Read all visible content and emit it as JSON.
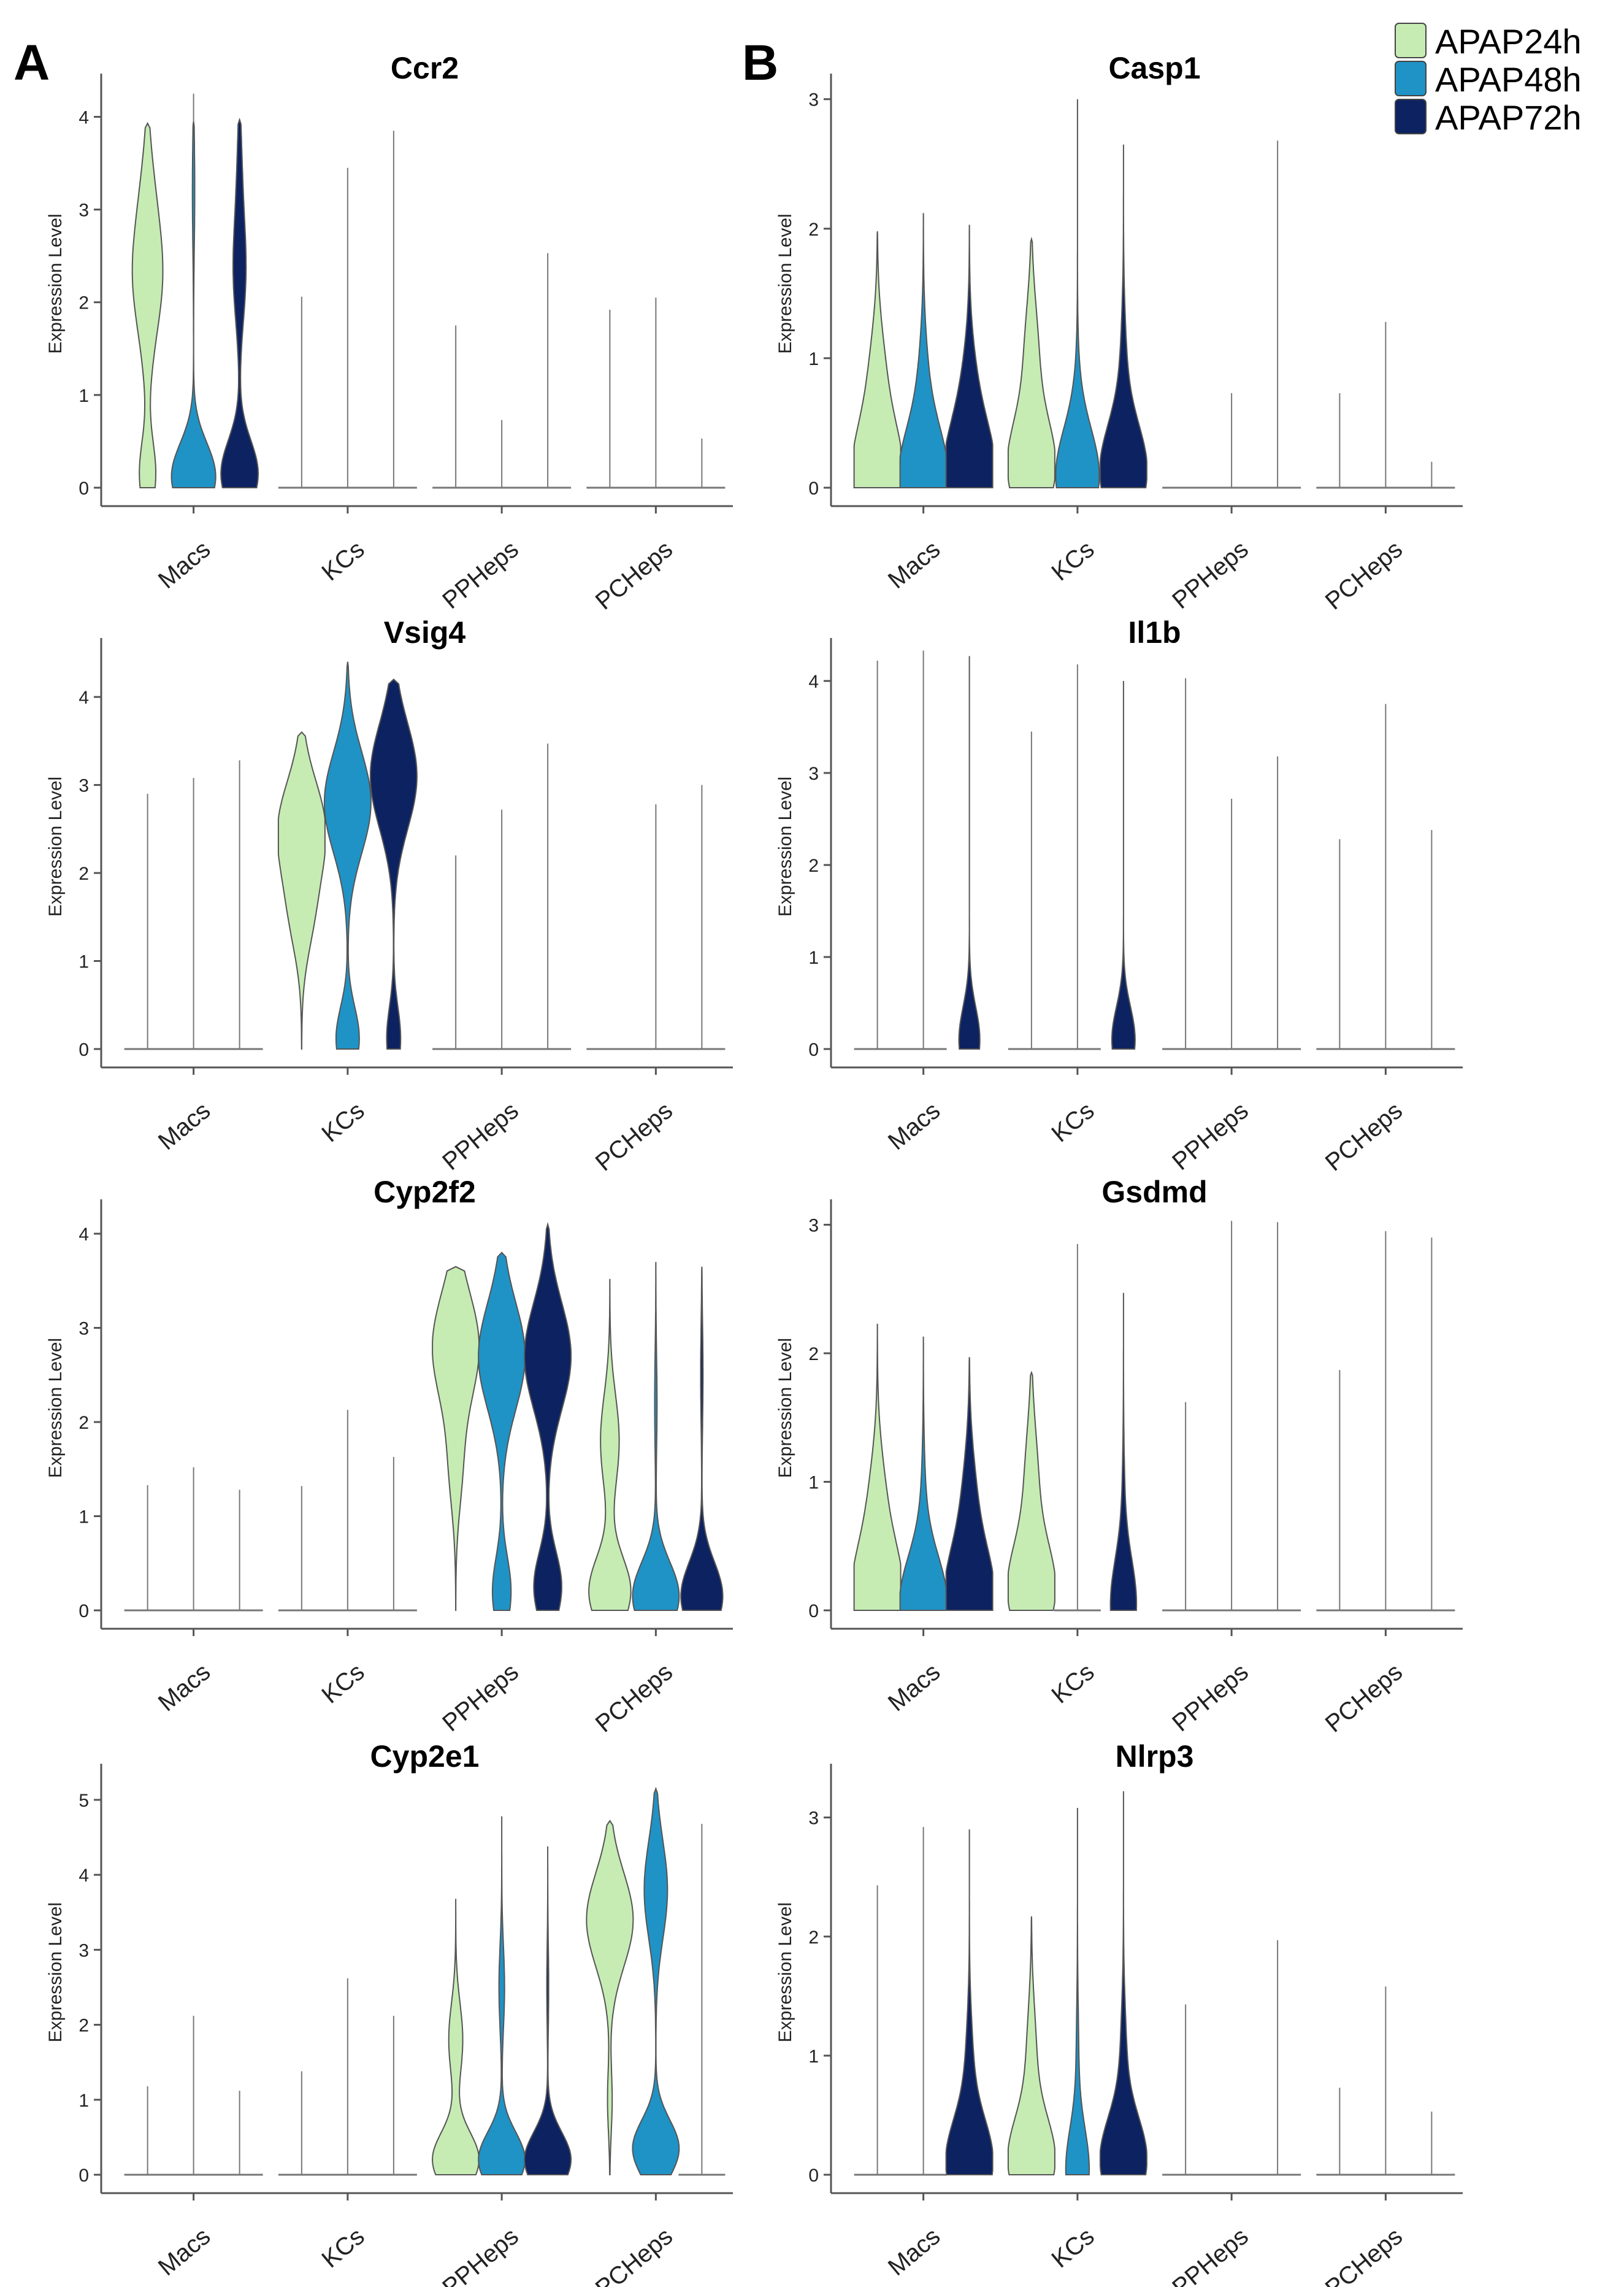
{
  "panel_labels": [
    "A",
    "B"
  ],
  "y_axis_label": "Expression Level",
  "legend": [
    {
      "label": "APAP24h",
      "color": "#c6ecb3"
    },
    {
      "label": "APAP48h",
      "color": "#1f93c6"
    },
    {
      "label": "APAP72h",
      "color": "#0d2260"
    }
  ],
  "categories": [
    "Macs",
    "KCs",
    "PPHeps",
    "PCHeps"
  ],
  "colors": {
    "outline": "#555555",
    "axis": "#555555",
    "text": "#000000"
  },
  "chart_data": [
    {
      "type": "violin",
      "title": "Ccr2",
      "ylim": [
        0,
        4.4
      ],
      "yticks": [
        0,
        1,
        2,
        3,
        4
      ],
      "violins": [
        {
          "shape": "full",
          "max": 3.93,
          "modes": [
            [
              0.15,
              0.35
            ],
            [
              1.4,
              0.1
            ],
            [
              2.2,
              0.5
            ],
            [
              3.0,
              0.3
            ]
          ],
          "base": 0.25
        },
        {
          "shape": "full",
          "max": 3.95,
          "modes": [
            [
              0.12,
              0.95
            ],
            [
              3.2,
              0.05
            ]
          ],
          "base": 0.1,
          "tail": 4.25
        },
        {
          "shape": "full",
          "max": 3.97,
          "modes": [
            [
              0.15,
              0.8
            ],
            [
              2.3,
              0.25
            ],
            [
              3.3,
              0.1
            ]
          ],
          "base": 0.15
        },
        {
          "shape": "line",
          "max": 2.06
        },
        {
          "shape": "line",
          "max": 3.45
        },
        {
          "shape": "line",
          "max": 3.85
        },
        {
          "shape": "line",
          "max": 1.75
        },
        {
          "shape": "line",
          "max": 0.73
        },
        {
          "shape": "line",
          "max": 2.53
        },
        {
          "shape": "line",
          "max": 1.92
        },
        {
          "shape": "line",
          "max": 2.05
        },
        {
          "shape": "line",
          "max": 0.53
        }
      ]
    },
    {
      "type": "violin",
      "title": "Casp1",
      "ylim": [
        0,
        3.15
      ],
      "yticks": [
        0,
        1,
        2,
        3
      ],
      "violins": [
        {
          "shape": "full",
          "max": 1.98,
          "modes": [
            [
              0.1,
              1.0
            ],
            [
              0.8,
              0.35
            ]
          ],
          "base": 0.05
        },
        {
          "shape": "full",
          "max": 2.12,
          "modes": [
            [
              0.08,
              1.0
            ],
            [
              0.75,
              0.2
            ]
          ],
          "base": 0.08
        },
        {
          "shape": "full",
          "max": 2.03,
          "modes": [
            [
              0.1,
              1.0
            ],
            [
              0.7,
              0.3
            ]
          ],
          "base": 0.08
        },
        {
          "shape": "full",
          "max": 1.92,
          "modes": [
            [
              0.15,
              1.0
            ],
            [
              1.0,
              0.3
            ]
          ],
          "base": 0.06
        },
        {
          "shape": "full",
          "max": 3.0,
          "modes": [
            [
              0.08,
              0.9
            ],
            [
              0.6,
              0.08
            ]
          ],
          "base": 0.05
        },
        {
          "shape": "full",
          "max": 2.65,
          "modes": [
            [
              0.12,
              1.0
            ],
            [
              0.9,
              0.12
            ]
          ],
          "base": 0.05
        },
        {
          "shape": "line",
          "max": 0.0
        },
        {
          "shape": "line",
          "max": 0.73
        },
        {
          "shape": "line",
          "max": 2.68
        },
        {
          "shape": "line",
          "max": 0.73
        },
        {
          "shape": "line",
          "max": 1.28
        },
        {
          "shape": "line",
          "max": 0.2
        }
      ]
    },
    {
      "type": "violin",
      "title": "Vsig4",
      "ylim": [
        0,
        4.6
      ],
      "yticks": [
        0,
        1,
        2,
        3,
        4
      ],
      "violins": [
        {
          "shape": "line",
          "max": 2.9
        },
        {
          "shape": "line",
          "max": 3.08
        },
        {
          "shape": "line",
          "max": 3.28
        },
        {
          "shape": "full",
          "max": 3.6,
          "modes": [
            [
              2.5,
              1.0
            ],
            [
              1.5,
              0.4
            ]
          ],
          "base": 0.0,
          "tail": 0.0
        },
        {
          "shape": "full",
          "max": 4.4,
          "modes": [
            [
              2.8,
              1.0
            ],
            [
              0.12,
              0.5
            ]
          ],
          "base": 0.25
        },
        {
          "shape": "full",
          "max": 4.2,
          "modes": [
            [
              3.1,
              1.0
            ],
            [
              0.12,
              0.3
            ]
          ],
          "base": 0.1
        },
        {
          "shape": "line",
          "max": 2.2
        },
        {
          "shape": "line",
          "max": 2.72
        },
        {
          "shape": "line",
          "max": 3.47
        },
        {
          "shape": "line",
          "max": 0.0
        },
        {
          "shape": "line",
          "max": 2.78
        },
        {
          "shape": "line",
          "max": 3.0
        }
      ]
    },
    {
      "type": "violin",
      "title": "Il1b",
      "ylim": [
        0,
        4.4
      ],
      "yticks": [
        0,
        1,
        2,
        3,
        4
      ],
      "violins": [
        {
          "shape": "line",
          "max": 4.22
        },
        {
          "shape": "line",
          "max": 4.33
        },
        {
          "shape": "full",
          "max": 4.27,
          "modes": [
            [
              0.1,
              0.45
            ]
          ],
          "base": 0.2
        },
        {
          "shape": "line",
          "max": 3.45
        },
        {
          "shape": "line",
          "max": 4.18
        },
        {
          "shape": "full",
          "max": 4.0,
          "modes": [
            [
              0.1,
              0.5
            ]
          ],
          "base": 0.2
        },
        {
          "shape": "line",
          "max": 4.03
        },
        {
          "shape": "line",
          "max": 2.72
        },
        {
          "shape": "line",
          "max": 3.18
        },
        {
          "shape": "line",
          "max": 2.28
        },
        {
          "shape": "line",
          "max": 3.75
        },
        {
          "shape": "line",
          "max": 2.38
        }
      ]
    },
    {
      "type": "violin",
      "title": "Cyp2f2",
      "ylim": [
        0,
        4.3
      ],
      "yticks": [
        0,
        1,
        2,
        3,
        4
      ],
      "violins": [
        {
          "shape": "line",
          "max": 1.33
        },
        {
          "shape": "line",
          "max": 1.52
        },
        {
          "shape": "line",
          "max": 1.28
        },
        {
          "shape": "line",
          "max": 1.32
        },
        {
          "shape": "line",
          "max": 2.13
        },
        {
          "shape": "line",
          "max": 1.63
        },
        {
          "shape": "full",
          "max": 3.65,
          "modes": [
            [
              2.8,
              1.0
            ],
            [
              1.5,
              0.25
            ]
          ],
          "base": 0.0
        },
        {
          "shape": "full",
          "max": 3.8,
          "modes": [
            [
              2.7,
              1.0
            ],
            [
              0.2,
              0.4
            ]
          ],
          "base": 0.25
        },
        {
          "shape": "full",
          "max": 4.1,
          "modes": [
            [
              2.7,
              1.0
            ],
            [
              0.25,
              0.6
            ]
          ],
          "base": 0.3
        },
        {
          "shape": "full",
          "max": 3.52,
          "modes": [
            [
              0.2,
              0.9
            ],
            [
              1.8,
              0.4
            ]
          ],
          "base": 0.35
        },
        {
          "shape": "full",
          "max": 3.7,
          "modes": [
            [
              0.15,
              1.0
            ],
            [
              2.2,
              0.05
            ]
          ],
          "base": 0.35
        },
        {
          "shape": "full",
          "max": 3.65,
          "modes": [
            [
              0.15,
              0.9
            ],
            [
              2.5,
              0.05
            ]
          ],
          "base": 0.3
        }
      ]
    },
    {
      "type": "violin",
      "title": "Gsdmd",
      "ylim": [
        0,
        3.15
      ],
      "yticks": [
        0,
        1,
        2,
        3
      ],
      "violins": [
        {
          "shape": "full",
          "max": 2.23,
          "modes": [
            [
              0.12,
              1.0
            ],
            [
              0.8,
              0.35
            ]
          ],
          "base": 0.06
        },
        {
          "shape": "full",
          "max": 2.13,
          "modes": [
            [
              0.06,
              1.0
            ],
            [
              0.8,
              0.08
            ]
          ],
          "base": 0.08
        },
        {
          "shape": "full",
          "max": 1.97,
          "modes": [
            [
              0.1,
              1.0
            ],
            [
              0.8,
              0.3
            ]
          ],
          "base": 0.05
        },
        {
          "shape": "full",
          "max": 1.85,
          "modes": [
            [
              0.15,
              1.0
            ],
            [
              1.0,
              0.28
            ]
          ],
          "base": 0.05
        },
        {
          "shape": "line",
          "max": 2.85
        },
        {
          "shape": "full",
          "max": 2.47,
          "modes": [
            [
              0.04,
              0.55
            ],
            [
              0.8,
              0.05
            ]
          ],
          "base": 0.1
        },
        {
          "shape": "line",
          "max": 1.62
        },
        {
          "shape": "line",
          "max": 3.03
        },
        {
          "shape": "line",
          "max": 3.02
        },
        {
          "shape": "line",
          "max": 1.87
        },
        {
          "shape": "line",
          "max": 2.95
        },
        {
          "shape": "line",
          "max": 2.9
        }
      ]
    },
    {
      "type": "violin",
      "title": "Cyp2e1",
      "ylim": [
        0,
        5.4
      ],
      "yticks": [
        0,
        1,
        2,
        3,
        4,
        5
      ],
      "violins": [
        {
          "shape": "line",
          "max": 1.18
        },
        {
          "shape": "line",
          "max": 2.12
        },
        {
          "shape": "line",
          "max": 1.12
        },
        {
          "shape": "line",
          "max": 1.38
        },
        {
          "shape": "line",
          "max": 2.62
        },
        {
          "shape": "line",
          "max": 2.12
        },
        {
          "shape": "full",
          "max": 3.68,
          "modes": [
            [
              0.2,
              1.0
            ],
            [
              1.8,
              0.3
            ]
          ],
          "base": 0.1
        },
        {
          "shape": "full",
          "max": 4.78,
          "modes": [
            [
              0.2,
              1.0
            ],
            [
              2.5,
              0.12
            ]
          ],
          "base": 0.25
        },
        {
          "shape": "full",
          "max": 4.38,
          "modes": [
            [
              0.2,
              1.0
            ],
            [
              2.5,
              0.04
            ]
          ],
          "base": 0.2
        },
        {
          "shape": "full",
          "max": 4.72,
          "modes": [
            [
              3.4,
              1.0
            ],
            [
              1.0,
              0.1
            ]
          ],
          "base": 0.0
        },
        {
          "shape": "full",
          "max": 5.15,
          "modes": [
            [
              0.35,
              1.0
            ],
            [
              3.8,
              0.5
            ]
          ],
          "base": 0.5
        },
        {
          "shape": "line",
          "max": 4.68
        }
      ]
    },
    {
      "type": "violin",
      "title": "Nlrp3",
      "ylim": [
        0,
        3.4
      ],
      "yticks": [
        0,
        1,
        2,
        3
      ],
      "violins": [
        {
          "shape": "line",
          "max": 2.43
        },
        {
          "shape": "line",
          "max": 2.92
        },
        {
          "shape": "full",
          "max": 2.9,
          "modes": [
            [
              0.1,
              1.0
            ],
            [
              0.9,
              0.15
            ]
          ],
          "base": 0.1
        },
        {
          "shape": "full",
          "max": 2.17,
          "modes": [
            [
              0.12,
              1.0
            ],
            [
              1.0,
              0.2
            ]
          ],
          "base": 0.05
        },
        {
          "shape": "full",
          "max": 3.08,
          "modes": [
            [
              0.04,
              0.5
            ],
            [
              1.0,
              0.05
            ]
          ],
          "base": 0.2
        },
        {
          "shape": "full",
          "max": 3.22,
          "modes": [
            [
              0.12,
              1.0
            ],
            [
              1.0,
              0.12
            ]
          ],
          "base": 0.1
        },
        {
          "shape": "line",
          "max": 1.43
        },
        {
          "shape": "line",
          "max": 0.0
        },
        {
          "shape": "line",
          "max": 1.97
        },
        {
          "shape": "line",
          "max": 0.73
        },
        {
          "shape": "line",
          "max": 1.58
        },
        {
          "shape": "line",
          "max": 0.53
        }
      ]
    }
  ]
}
